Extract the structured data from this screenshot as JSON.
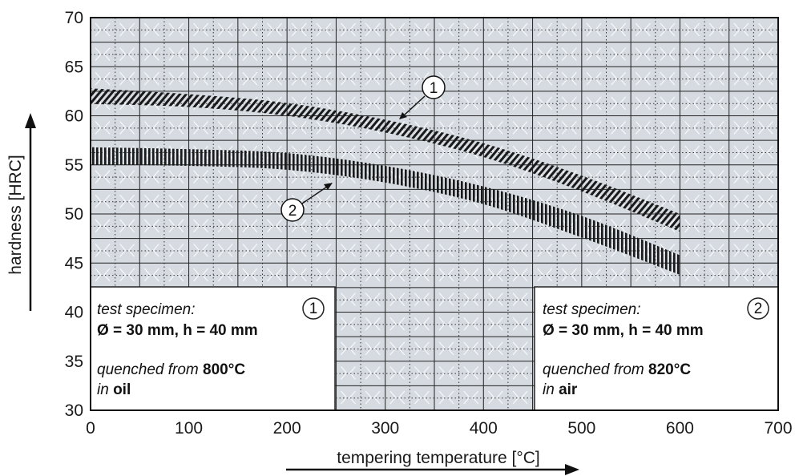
{
  "chart_data": {
    "type": "area",
    "xlabel": "tempering temperature [°C]",
    "ylabel": "hardness [HRC]",
    "xlim": [
      0,
      700
    ],
    "ylim": [
      30,
      70
    ],
    "x_ticks": [
      "0",
      "100",
      "200",
      "300",
      "400",
      "500",
      "600",
      "700"
    ],
    "y_ticks": [
      "30",
      "35",
      "40",
      "45",
      "50",
      "55",
      "60",
      "65",
      "70"
    ],
    "grid": true,
    "series": [
      {
        "name": "1",
        "x": [
          0,
          100,
          200,
          300,
          400,
          500,
          600
        ],
        "y_upper": [
          62.8,
          62.2,
          61.3,
          59.6,
          57.2,
          53.9,
          50.0
        ],
        "y_lower": [
          61.2,
          60.9,
          60.0,
          58.3,
          55.8,
          52.3,
          48.2
        ],
        "hatch": "diagonal"
      },
      {
        "name": "2",
        "x": [
          0,
          100,
          200,
          300,
          400,
          500,
          600
        ],
        "y_upper": [
          56.8,
          56.6,
          56.2,
          54.9,
          52.8,
          49.8,
          45.8
        ],
        "y_lower": [
          55.0,
          54.9,
          54.5,
          53.2,
          51.0,
          47.6,
          43.8
        ],
        "hatch": "vertical"
      }
    ],
    "callouts": [
      {
        "label": "1",
        "x": 350,
        "y": 59.0
      },
      {
        "label": "2",
        "x": 250,
        "y": 53.5
      }
    ]
  },
  "legend_boxes": [
    {
      "number": "1",
      "line1": "test specimen:",
      "line2": "Ø = 30 mm, h = 40 mm",
      "line3_pre": "quenched from ",
      "line3_bold": "800°C",
      "line4_pre": "in ",
      "line4_bold": "oil"
    },
    {
      "number": "2",
      "line1": "test specimen:",
      "line2": "Ø = 30 mm, h = 40 mm",
      "line3_pre": "quenched from ",
      "line3_bold": "820°C",
      "line4_pre": "in ",
      "line4_bold": "air"
    }
  ],
  "colors": {
    "plot_background": "#d5dbe1",
    "grid": "#222222",
    "band": "#1a1a1a",
    "text": "#1a1a1a"
  }
}
